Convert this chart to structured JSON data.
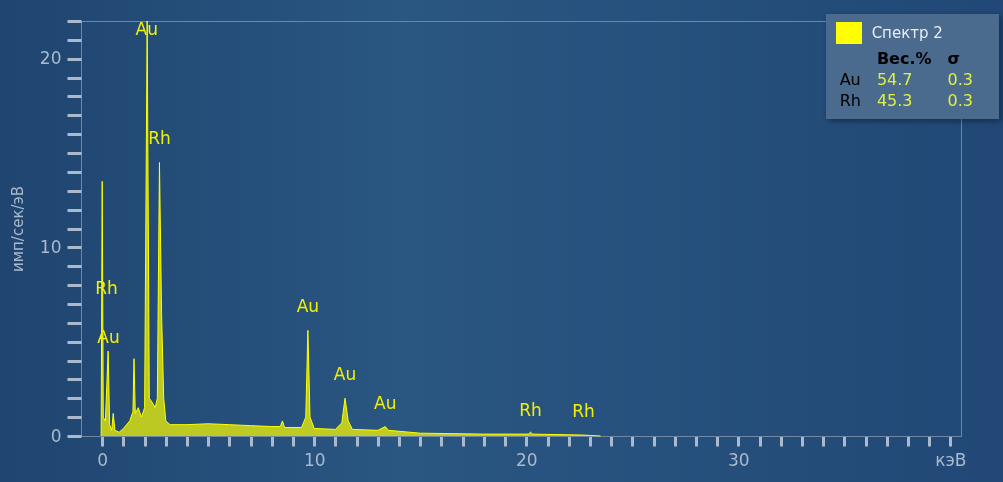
{
  "chart_data": {
    "type": "area",
    "ylabel": "имп/сек/эВ",
    "legend": "top right",
    "xlim": [
      -1,
      40.5
    ],
    "ylim": [
      0,
      22
    ],
    "xticks": [
      0,
      {
        "value": 1,
        "label": null
      },
      {
        "value": 2,
        "label": null
      },
      {
        "value": 3,
        "label": null
      },
      {
        "value": 4,
        "label": null
      },
      {
        "value": 5,
        "label": null
      },
      {
        "value": 6,
        "label": null
      },
      {
        "value": 7,
        "label": null
      },
      {
        "value": 8,
        "label": null
      },
      {
        "value": 9,
        "label": null
      },
      10,
      {
        "value": 11,
        "label": null
      },
      {
        "value": 12,
        "label": null
      },
      {
        "value": 13,
        "label": null
      },
      {
        "value": 14,
        "label": null
      },
      {
        "value": 15,
        "label": null
      },
      {
        "value": 16,
        "label": null
      },
      {
        "value": 17,
        "label": null
      },
      {
        "value": 18,
        "label": null
      },
      {
        "value": 19,
        "label": null
      },
      20,
      {
        "value": 21,
        "label": null
      },
      {
        "value": 22,
        "label": null
      },
      {
        "value": 23,
        "label": null
      },
      {
        "value": 24,
        "label": null
      },
      {
        "value": 25,
        "label": null
      },
      {
        "value": 26,
        "label": null
      },
      {
        "value": 27,
        "label": null
      },
      {
        "value": 28,
        "label": null
      },
      {
        "value": 29,
        "label": null
      },
      30,
      {
        "value": 31,
        "label": null
      },
      {
        "value": 32,
        "label": null
      },
      {
        "value": 33,
        "label": null
      },
      {
        "value": 34,
        "label": null
      },
      {
        "value": 35,
        "label": null
      },
      {
        "value": 36,
        "label": null
      },
      {
        "value": 37,
        "label": null
      },
      {
        "value": 38,
        "label": null
      },
      {
        "value": 39,
        "label": null
      },
      {
        "value": 40,
        "label": "кэВ"
      }
    ],
    "yticks": [
      0,
      {
        "value": 1,
        "label": null
      },
      {
        "value": 2,
        "label": null
      },
      {
        "value": 3,
        "label": null
      },
      {
        "value": 4,
        "label": null
      },
      {
        "value": 5,
        "label": null
      },
      {
        "value": 6,
        "label": null
      },
      {
        "value": 7,
        "label": null
      },
      {
        "value": 8,
        "label": null
      },
      {
        "value": 9,
        "label": null
      },
      10,
      {
        "value": 11,
        "label": null
      },
      {
        "value": 12,
        "label": null
      },
      {
        "value": 13,
        "label": null
      },
      {
        "value": 14,
        "label": null
      },
      {
        "value": 15,
        "label": null
      },
      {
        "value": 16,
        "label": null
      },
      {
        "value": 17,
        "label": null
      },
      {
        "value": 18,
        "label": null
      },
      {
        "value": 19,
        "label": null
      },
      20,
      {
        "value": 21,
        "label": null
      },
      {
        "value": 22,
        "label": null
      }
    ],
    "grid": false,
    "series": [
      {
        "name": "Спектр 2",
        "color": "#ffff00",
        "x": [
          -0.05,
          0,
          0.05,
          0.15,
          0.28,
          0.35,
          0.45,
          0.52,
          0.6,
          0.8,
          1.0,
          1.3,
          1.45,
          1.5,
          1.56,
          1.7,
          1.85,
          2.0,
          2.12,
          2.22,
          2.35,
          2.5,
          2.6,
          2.7,
          2.8,
          2.9,
          3.0,
          3.2,
          4,
          5,
          6,
          7,
          8,
          8.4,
          8.5,
          8.6,
          9.4,
          9.6,
          9.7,
          9.8,
          10,
          11,
          11.3,
          11.45,
          11.6,
          11.8,
          13,
          13.35,
          13.5,
          15,
          18,
          20.1,
          20.2,
          20.3,
          22.7,
          23,
          23.5
        ],
        "values": [
          0,
          13.5,
          1,
          0.8,
          4.5,
          0.6,
          0.3,
          1.2,
          0.3,
          0.2,
          0.4,
          0.8,
          1.3,
          4.1,
          1.2,
          1.5,
          1.0,
          1.5,
          22,
          2.0,
          1.8,
          1.5,
          2.0,
          14.5,
          6.5,
          2.0,
          0.8,
          0.6,
          0.6,
          0.65,
          0.6,
          0.55,
          0.5,
          0.5,
          0.8,
          0.45,
          0.45,
          1.0,
          5.6,
          1.0,
          0.4,
          0.35,
          0.7,
          2.0,
          0.8,
          0.35,
          0.3,
          0.5,
          0.3,
          0.15,
          0.1,
          0.1,
          0.2,
          0.1,
          0.05,
          0.03,
          0
        ]
      }
    ],
    "annotations": [
      {
        "text": "Au",
        "x": 2.1,
        "y": 20.3
      },
      {
        "text": "Rh",
        "x": 2.7,
        "y": 14.5
      },
      {
        "text": "Rh",
        "x": 0.2,
        "y": 6.6
      },
      {
        "text": "Au",
        "x": 0.3,
        "y": 4.0
      },
      {
        "text": "Au",
        "x": 9.7,
        "y": 5.6
      },
      {
        "text": "Au",
        "x": 11.45,
        "y": 2.0
      },
      {
        "text": "Au",
        "x": 13.35,
        "y": 0.5
      },
      {
        "text": "Rh",
        "x": 20.2,
        "y": 0.1
      },
      {
        "text": "Rh",
        "x": 22.7,
        "y": 0.05
      },
      "Вес.%",
      "σ",
      "Au",
      "54.7",
      "0.3",
      "Rh",
      "45.3",
      "0.3"
    ]
  }
}
